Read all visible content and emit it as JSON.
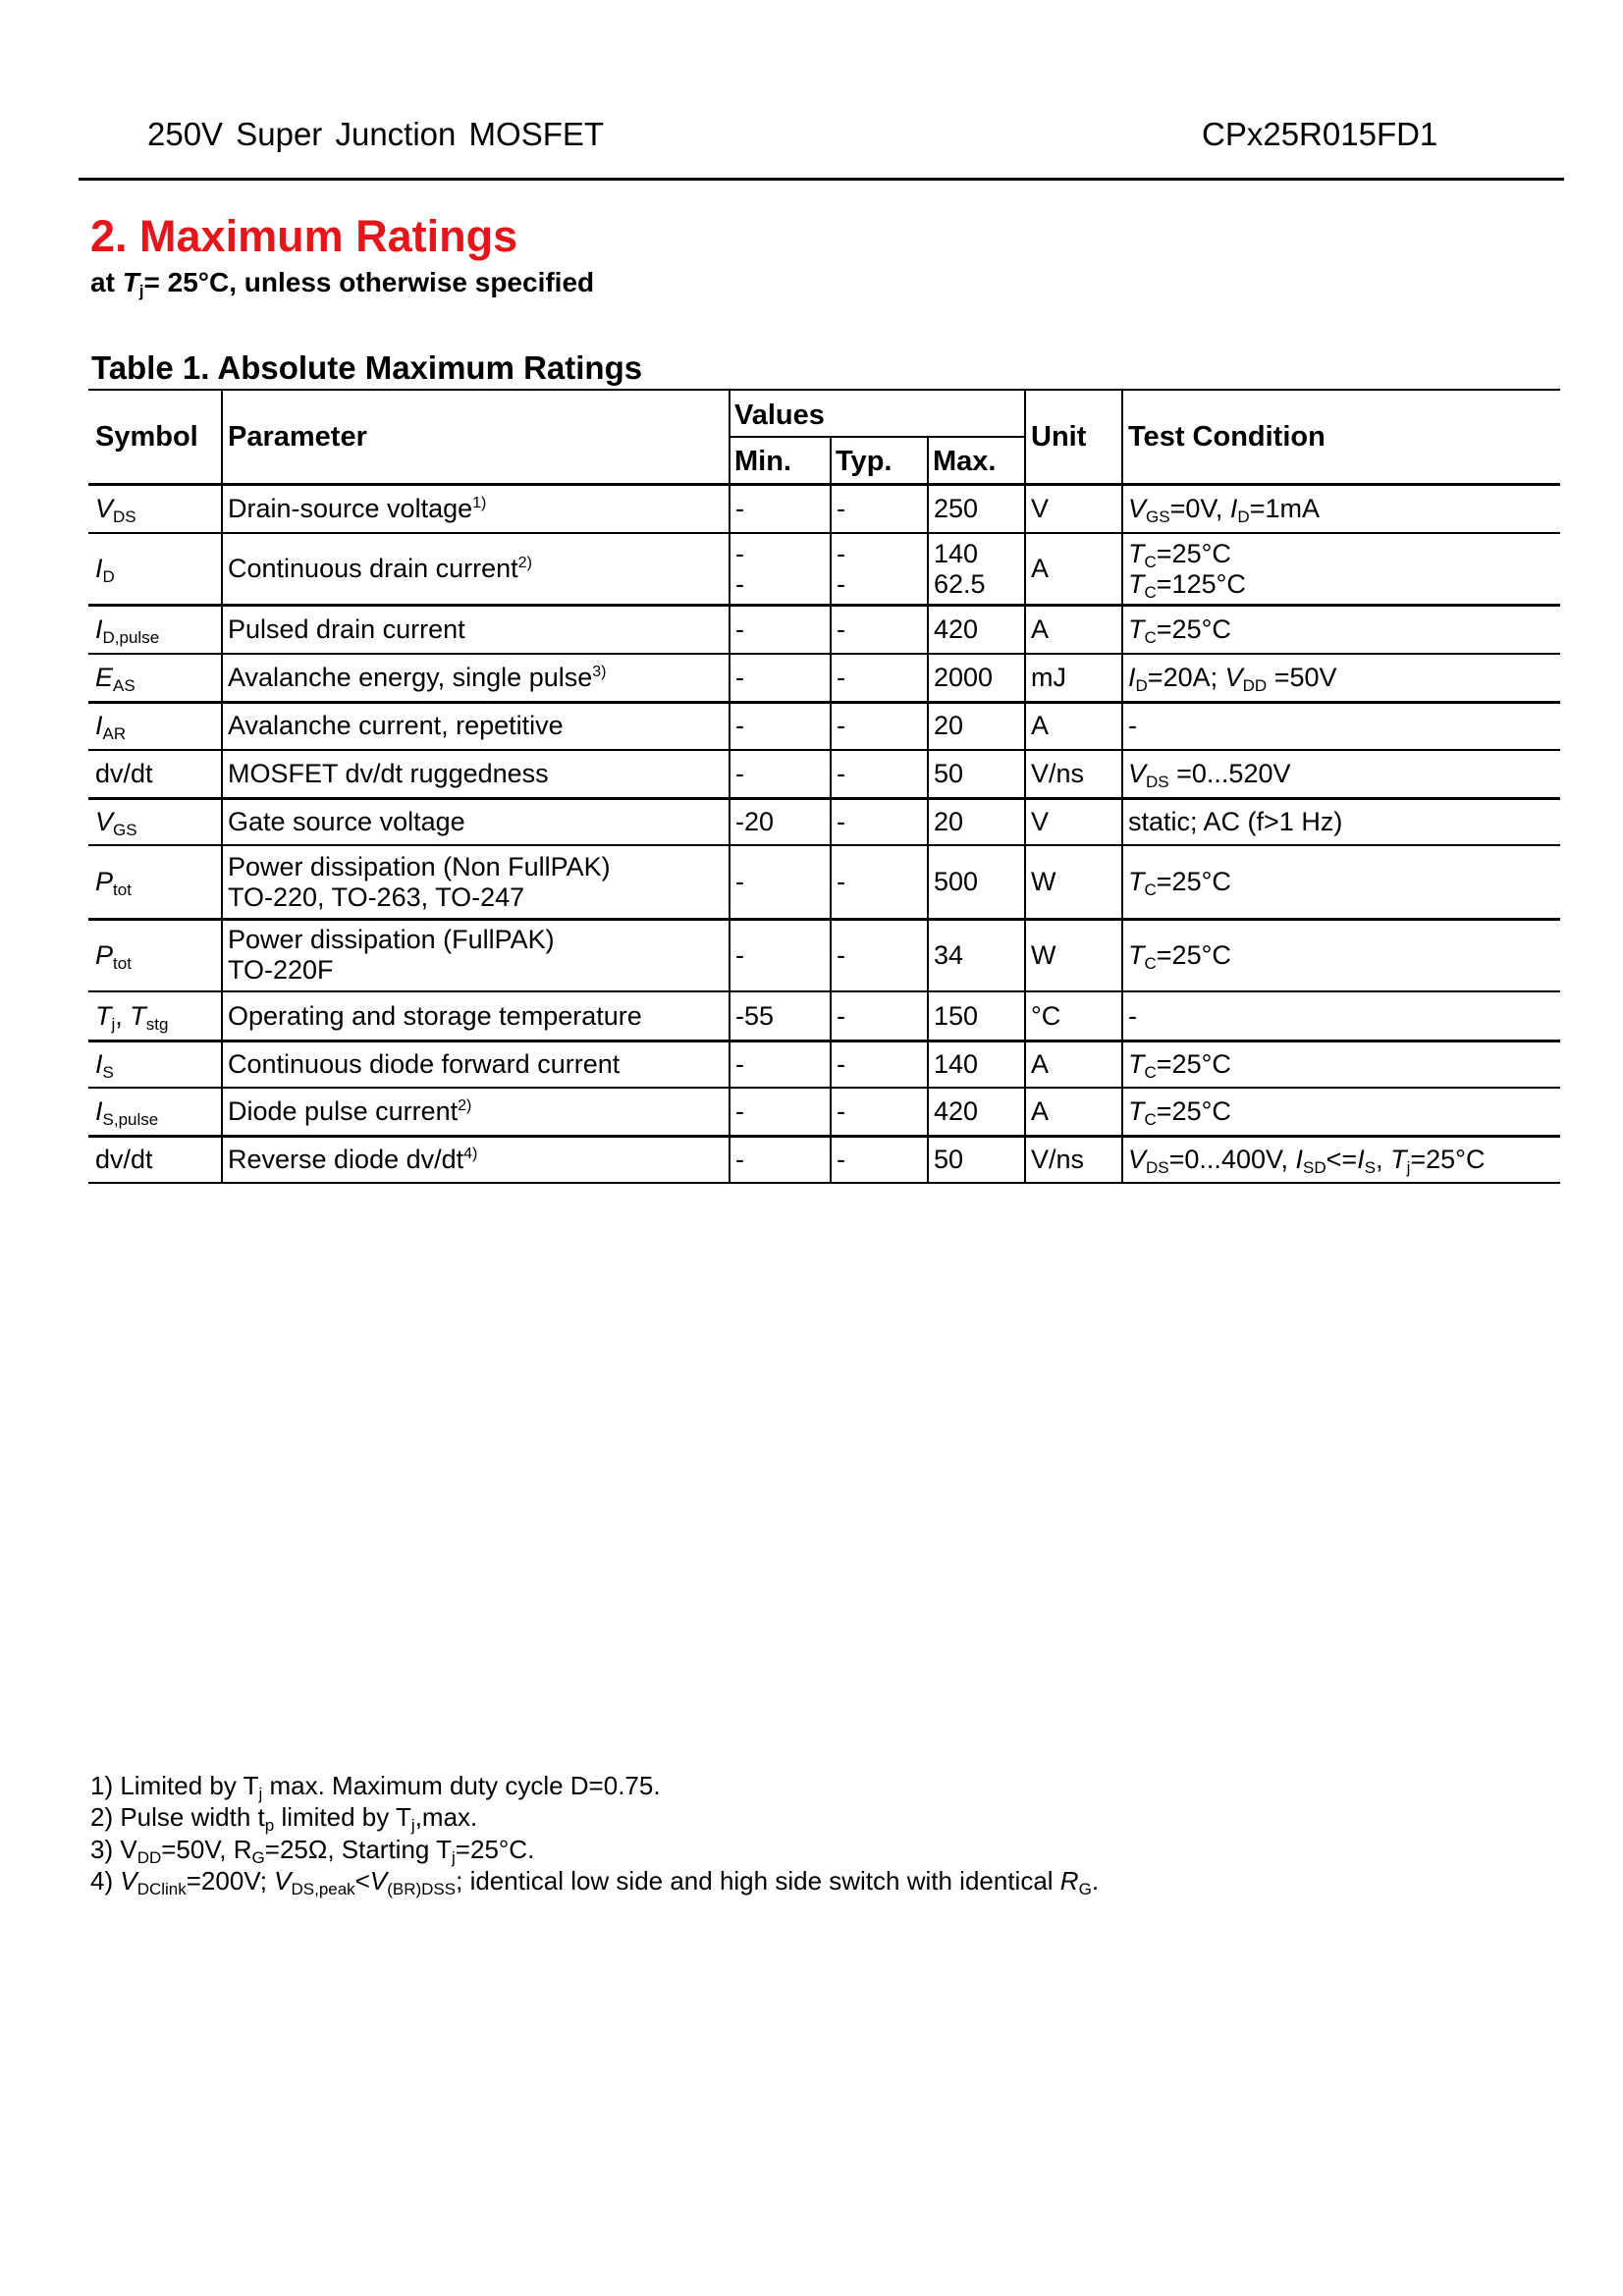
{
  "header": {
    "left": "250V Super Junction MOSFET",
    "right": "CPx25R015FD1"
  },
  "section": {
    "title": "2. Maximum Ratings",
    "subtitle": [
      [
        "at ",
        ""
      ],
      [
        "T",
        "i"
      ],
      [
        "j",
        "s"
      ],
      [
        "= 25°C, unless otherwise specified",
        ""
      ]
    ]
  },
  "table": {
    "title": "Table 1. Absolute Maximum Ratings",
    "headers": {
      "symbol": "Symbol",
      "parameter": "Parameter",
      "values": "Values",
      "min": "Min.",
      "typ": "Typ.",
      "max": "Max.",
      "unit": "Unit",
      "condition": "Test Condition"
    },
    "rows": [
      {
        "symbol": [
          [
            "V",
            "i"
          ],
          [
            "DS",
            "s"
          ]
        ],
        "parameter": [
          "Drain-source voltage"
        ],
        "sup": "1)",
        "min": [
          "-"
        ],
        "typ": [
          "-"
        ],
        "max": [
          "250"
        ],
        "unit": "V",
        "condition": [
          [
            [
              "V",
              "i"
            ],
            [
              "GS",
              "s"
            ],
            [
              "=0V, ",
              ""
            ],
            [
              "I",
              "i"
            ],
            [
              "D",
              "s"
            ],
            [
              "=1mA",
              ""
            ]
          ]
        ]
      },
      {
        "symbol": [
          [
            "I",
            "i"
          ],
          [
            "D",
            "s"
          ]
        ],
        "parameter": [
          "Continuous drain current"
        ],
        "sup": "2)",
        "min": [
          "-",
          "-"
        ],
        "typ": [
          "-",
          "-"
        ],
        "max": [
          "140",
          "62.5"
        ],
        "unit": "A",
        "condition": [
          [
            [
              "T",
              "i"
            ],
            [
              "C",
              "s"
            ],
            [
              "=25°C",
              ""
            ]
          ],
          [
            [
              "T",
              "i"
            ],
            [
              "C",
              "s"
            ],
            [
              "=125°C",
              ""
            ]
          ]
        ]
      },
      {
        "symbol": [
          [
            "I",
            "i"
          ],
          [
            "D,pulse",
            "s"
          ]
        ],
        "parameter": [
          "Pulsed drain current"
        ],
        "sup": "",
        "min": [
          "-"
        ],
        "typ": [
          "-"
        ],
        "max": [
          "420"
        ],
        "unit": "A",
        "condition": [
          [
            [
              "T",
              "i"
            ],
            [
              "C",
              "s"
            ],
            [
              "=25°C",
              ""
            ]
          ]
        ]
      },
      {
        "symbol": [
          [
            "E",
            "i"
          ],
          [
            "AS",
            "s"
          ]
        ],
        "parameter": [
          "Avalanche energy, single pulse"
        ],
        "sup": "3)",
        "min": [
          "-"
        ],
        "typ": [
          "-"
        ],
        "max": [
          "2000"
        ],
        "unit": "mJ",
        "condition": [
          [
            [
              "I",
              "i"
            ],
            [
              "D",
              "s"
            ],
            [
              "=20A; ",
              ""
            ],
            [
              "V",
              "i"
            ],
            [
              "DD",
              "s"
            ],
            [
              " =50V",
              ""
            ]
          ]
        ]
      },
      {
        "symbol": [
          [
            "I",
            "i"
          ],
          [
            "AR",
            "s"
          ]
        ],
        "parameter": [
          "Avalanche current, repetitive"
        ],
        "sup": "",
        "min": [
          "-"
        ],
        "typ": [
          "-"
        ],
        "max": [
          "20"
        ],
        "unit": "A",
        "condition": [
          [
            [
              "-",
              ""
            ]
          ]
        ]
      },
      {
        "symbol": [
          [
            "dv/dt",
            ""
          ]
        ],
        "parameter": [
          "MOSFET dv/dt ruggedness"
        ],
        "sup": "",
        "min": [
          "-"
        ],
        "typ": [
          "-"
        ],
        "max": [
          "50"
        ],
        "unit": "V/ns",
        "condition": [
          [
            [
              "V",
              "i"
            ],
            [
              "DS",
              "s"
            ],
            [
              " =0...520V",
              ""
            ]
          ]
        ]
      },
      {
        "symbol": [
          [
            "V",
            "i"
          ],
          [
            "GS",
            "s"
          ]
        ],
        "parameter": [
          "Gate source voltage"
        ],
        "sup": "",
        "min": [
          "-20"
        ],
        "typ": [
          "-"
        ],
        "max": [
          "20"
        ],
        "unit": "V",
        "condition": [
          [
            [
              "static; AC (f>1 Hz)",
              ""
            ]
          ]
        ]
      },
      {
        "symbol": [
          [
            "P",
            "i"
          ],
          [
            "tot",
            "s"
          ]
        ],
        "parameter": [
          "Power dissipation (Non FullPAK)",
          "TO-220, TO-263, TO-247"
        ],
        "sup": "",
        "min": [
          "-"
        ],
        "typ": [
          "-"
        ],
        "max": [
          "500"
        ],
        "unit": "W",
        "condition": [
          [
            [
              "T",
              "i"
            ],
            [
              "C",
              "s"
            ],
            [
              "=25°C",
              ""
            ]
          ]
        ]
      },
      {
        "symbol": [
          [
            "P",
            "i"
          ],
          [
            "tot",
            "s"
          ]
        ],
        "parameter": [
          "Power dissipation (FullPAK)",
          "TO-220F"
        ],
        "sup": "",
        "min": [
          "-"
        ],
        "typ": [
          "-"
        ],
        "max": [
          "34"
        ],
        "unit": "W",
        "condition": [
          [
            [
              "T",
              "i"
            ],
            [
              "C",
              "s"
            ],
            [
              "=25°C",
              ""
            ]
          ]
        ]
      },
      {
        "symbol": [
          [
            "T",
            "i"
          ],
          [
            "j",
            "s"
          ],
          [
            ", ",
            ""
          ],
          [
            "T",
            "i"
          ],
          [
            "stg",
            "s"
          ]
        ],
        "parameter": [
          "Operating and storage temperature"
        ],
        "sup": "",
        "min": [
          "-55"
        ],
        "typ": [
          "-"
        ],
        "max": [
          "150"
        ],
        "unit": "°C",
        "condition": [
          [
            [
              "-",
              ""
            ]
          ]
        ]
      },
      {
        "symbol": [
          [
            "I",
            "i"
          ],
          [
            "S",
            "s"
          ]
        ],
        "parameter": [
          "Continuous diode forward current"
        ],
        "sup": "",
        "min": [
          "-"
        ],
        "typ": [
          "-"
        ],
        "max": [
          "140"
        ],
        "unit": "A",
        "condition": [
          [
            [
              "T",
              "i"
            ],
            [
              "C",
              "s"
            ],
            [
              "=25°C",
              ""
            ]
          ]
        ]
      },
      {
        "symbol": [
          [
            "I",
            "i"
          ],
          [
            "S,pulse",
            "s"
          ]
        ],
        "parameter": [
          "Diode pulse current"
        ],
        "sup": "2)",
        "min": [
          "-"
        ],
        "typ": [
          "-"
        ],
        "max": [
          "420"
        ],
        "unit": "A",
        "condition": [
          [
            [
              "T",
              "i"
            ],
            [
              "C",
              "s"
            ],
            [
              "=25°C",
              ""
            ]
          ]
        ]
      },
      {
        "symbol": [
          [
            "dv/dt",
            ""
          ]
        ],
        "parameter": [
          "Reverse diode dv/dt"
        ],
        "sup": "4)",
        "min": [
          "-"
        ],
        "typ": [
          "-"
        ],
        "max": [
          "50"
        ],
        "unit": "V/ns",
        "condition": [
          [
            [
              "V",
              "i"
            ],
            [
              "DS",
              "s"
            ],
            [
              "=0...400V, ",
              ""
            ],
            [
              "I",
              "i"
            ],
            [
              "SD",
              "s"
            ],
            [
              "<=",
              ""
            ],
            [
              "I",
              "i"
            ],
            [
              "S",
              "s"
            ],
            [
              ", ",
              ""
            ],
            [
              "T",
              "i"
            ],
            [
              "j",
              "s"
            ],
            [
              "=25°C",
              ""
            ]
          ]
        ]
      }
    ]
  },
  "footnotes": [
    [
      [
        "1) Limited by T",
        ""
      ],
      [
        "j",
        "s"
      ],
      [
        " max. Maximum duty cycle D=0.75.",
        ""
      ]
    ],
    [
      [
        "2) Pulse width t",
        ""
      ],
      [
        "p",
        "s"
      ],
      [
        " limited by T",
        ""
      ],
      [
        "j",
        "s"
      ],
      [
        ",max.",
        ""
      ]
    ],
    [
      [
        "3) V",
        ""
      ],
      [
        "DD",
        "s"
      ],
      [
        "=50V, R",
        ""
      ],
      [
        "G",
        "s"
      ],
      [
        "=25Ω, Starting T",
        ""
      ],
      [
        "j",
        "s"
      ],
      [
        "=25°C.",
        ""
      ]
    ],
    [
      [
        "4) ",
        ""
      ],
      [
        "V",
        "i"
      ],
      [
        "DClink",
        "s"
      ],
      [
        "=200V; ",
        ""
      ],
      [
        "V",
        "i"
      ],
      [
        "DS,peak",
        "s"
      ],
      [
        "<",
        ""
      ],
      [
        "V",
        "i"
      ],
      [
        "(BR)DSS",
        "s"
      ],
      [
        "; identical low side and high side switch with identical ",
        ""
      ],
      [
        "R",
        "i"
      ],
      [
        "G",
        "s"
      ],
      [
        ".",
        ""
      ]
    ]
  ]
}
